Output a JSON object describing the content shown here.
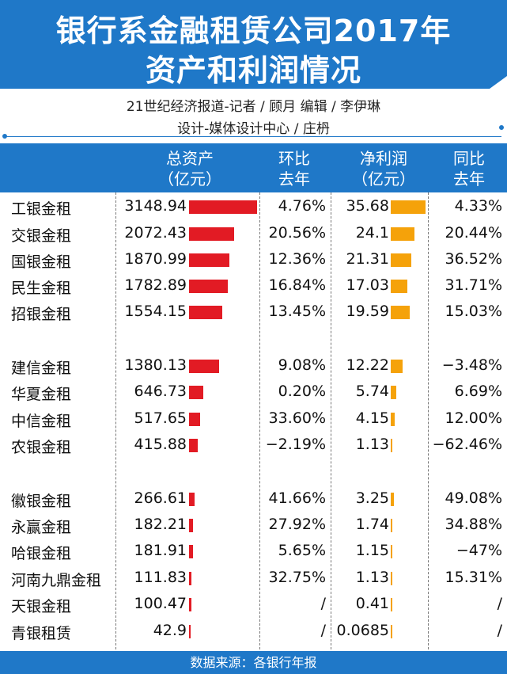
{
  "title": {
    "line1": "银行系金融租赁公司2017年",
    "line2": "资产和利润情况"
  },
  "credits": {
    "line1": "21世纪经济报道-记者 / 顾月   编辑 / 李伊琳",
    "line2": "设计-媒体设计中心 / 庄枬"
  },
  "columns": {
    "assets": [
      "总资产",
      "（亿元）"
    ],
    "assets_yoy": [
      "环比",
      "去年"
    ],
    "profit": [
      "净利润",
      "（亿元）"
    ],
    "profit_yoy": [
      "同比",
      "去年"
    ]
  },
  "footer": "数据来源：各银行年报",
  "colors": {
    "brand_blue": "#1f78c8",
    "asset_bar": "#e21b24",
    "profit_bar": "#f5a20a"
  },
  "chart_data": {
    "type": "table",
    "rows": [
      {
        "name": "工银金租",
        "assets": 3148.94,
        "assets_label": "3148.94",
        "assets_change": "4.76%",
        "profit": 35.68,
        "profit_label": "35.68",
        "profit_change": "4.33%"
      },
      {
        "name": "交银金租",
        "assets": 2072.43,
        "assets_label": "2072.43",
        "assets_change": "20.56%",
        "profit": 24.1,
        "profit_label": "24.1",
        "profit_change": "20.44%"
      },
      {
        "name": "国银金租",
        "assets": 1870.99,
        "assets_label": "1870.99",
        "assets_change": "12.36%",
        "profit": 21.31,
        "profit_label": "21.31",
        "profit_change": "36.52%"
      },
      {
        "name": "民生金租",
        "assets": 1782.89,
        "assets_label": "1782.89",
        "assets_change": "16.84%",
        "profit": 17.03,
        "profit_label": "17.03",
        "profit_change": "31.71%"
      },
      {
        "name": "招银金租",
        "assets": 1554.15,
        "assets_label": "1554.15",
        "assets_change": "13.45%",
        "profit": 19.59,
        "profit_label": "19.59",
        "profit_change": "15.03%"
      },
      {
        "name": "建信金租",
        "assets": 1380.13,
        "assets_label": "1380.13",
        "assets_change": "9.08%",
        "profit": 12.22,
        "profit_label": "12.22",
        "profit_change": "−3.48%"
      },
      {
        "name": "华夏金租",
        "assets": 646.73,
        "assets_label": "646.73",
        "assets_change": "0.20%",
        "profit": 5.74,
        "profit_label": "5.74",
        "profit_change": "6.69%"
      },
      {
        "name": "中信金租",
        "assets": 517.65,
        "assets_label": "517.65",
        "assets_change": "33.60%",
        "profit": 4.15,
        "profit_label": "4.15",
        "profit_change": "12.00%"
      },
      {
        "name": "农银金租",
        "assets": 415.88,
        "assets_label": "415.88",
        "assets_change": "−2.19%",
        "profit": 1.13,
        "profit_label": "1.13",
        "profit_change": "−62.46%"
      },
      {
        "name": "徽银金租",
        "assets": 266.61,
        "assets_label": "266.61",
        "assets_change": "41.66%",
        "profit": 3.25,
        "profit_label": "3.25",
        "profit_change": "49.08%"
      },
      {
        "name": "永赢金租",
        "assets": 182.21,
        "assets_label": "182.21",
        "assets_change": "27.92%",
        "profit": 1.74,
        "profit_label": "1.74",
        "profit_change": "34.88%"
      },
      {
        "name": "哈银金租",
        "assets": 181.91,
        "assets_label": "181.91",
        "assets_change": "5.65%",
        "profit": 1.15,
        "profit_label": "1.15",
        "profit_change": "−47%"
      },
      {
        "name": "河南九鼎金租",
        "assets": 111.83,
        "assets_label": "111.83",
        "assets_change": "32.75%",
        "profit": 1.13,
        "profit_label": "1.13",
        "profit_change": "15.31%"
      },
      {
        "name": "天银金租",
        "assets": 100.47,
        "assets_label": "100.47",
        "assets_change": "/",
        "profit": 0.41,
        "profit_label": "0.41",
        "profit_change": "/"
      },
      {
        "name": "青银租赁",
        "assets": 42.9,
        "assets_label": "42.9",
        "assets_change": "/",
        "profit": 0.0685,
        "profit_label": "0.0685",
        "profit_change": "/"
      }
    ]
  }
}
